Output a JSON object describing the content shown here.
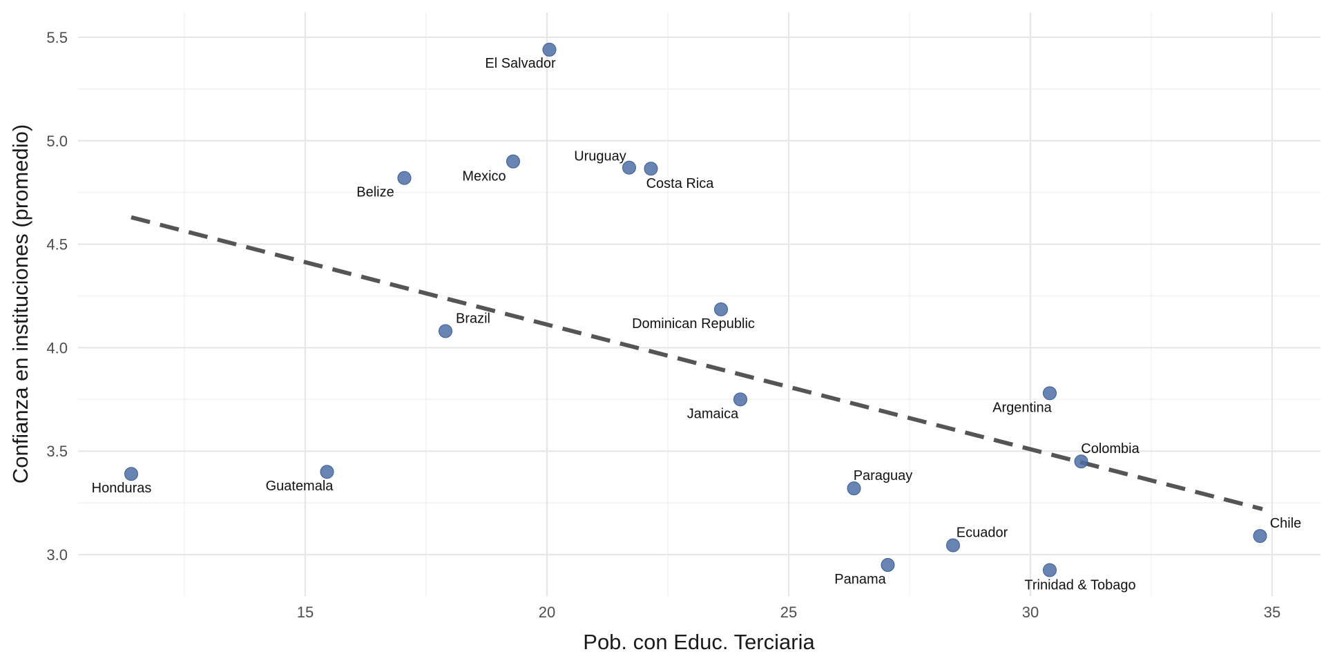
{
  "chart_data": {
    "type": "scatter",
    "title": "",
    "xlabel": "Pob. con Educ. Terciaria",
    "ylabel": "Confianza en instituciones (promedio)",
    "xlim": [
      10.3,
      36.0
    ],
    "ylim": [
      2.8,
      5.62
    ],
    "x_ticks": [
      15,
      20,
      25,
      30,
      35
    ],
    "x_tick_labels": [
      "15",
      "20",
      "25",
      "30",
      "35"
    ],
    "y_ticks": [
      3.0,
      3.5,
      4.0,
      4.5,
      5.0,
      5.5
    ],
    "y_tick_labels": [
      "3.0",
      "3.5",
      "4.0",
      "4.5",
      "5.0",
      "5.5"
    ],
    "grid": true,
    "legend": "none",
    "point_color": "#4c6fa5",
    "trend_color": "#555555",
    "trend_line": {
      "style": "dashed",
      "x": [
        11.4,
        34.8
      ],
      "y": [
        4.63,
        3.22
      ]
    },
    "points": [
      {
        "label": "El Salvador",
        "x": 20.05,
        "y": 5.44
      },
      {
        "label": "Uruguay",
        "x": 21.7,
        "y": 4.87
      },
      {
        "label": "Costa Rica",
        "x": 22.15,
        "y": 4.865
      },
      {
        "label": "Mexico",
        "x": 19.3,
        "y": 4.9
      },
      {
        "label": "Belize",
        "x": 17.05,
        "y": 4.82
      },
      {
        "label": "Brazil",
        "x": 17.9,
        "y": 4.08
      },
      {
        "label": "Dominican Republic",
        "x": 23.6,
        "y": 4.185
      },
      {
        "label": "Jamaica",
        "x": 24.0,
        "y": 3.75
      },
      {
        "label": "Argentina",
        "x": 30.4,
        "y": 3.78
      },
      {
        "label": "Colombia",
        "x": 31.05,
        "y": 3.45
      },
      {
        "label": "Honduras",
        "x": 11.4,
        "y": 3.39
      },
      {
        "label": "Guatemala",
        "x": 15.45,
        "y": 3.4
      },
      {
        "label": "Paraguay",
        "x": 26.35,
        "y": 3.32
      },
      {
        "label": "Ecuador",
        "x": 28.4,
        "y": 3.045
      },
      {
        "label": "Panama",
        "x": 27.05,
        "y": 2.95
      },
      {
        "label": "Trinidad & Tobago",
        "x": 30.4,
        "y": 2.925
      },
      {
        "label": "Chile",
        "x": 34.75,
        "y": 3.09
      }
    ]
  }
}
